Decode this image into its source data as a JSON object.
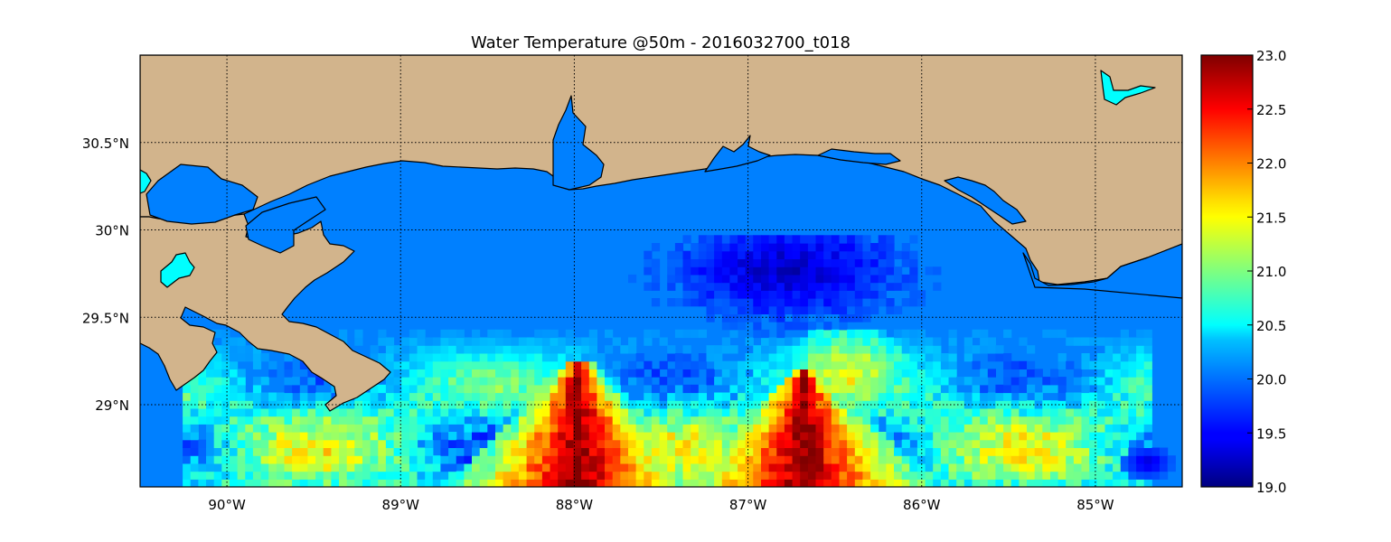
{
  "chart_data": {
    "type": "heatmap",
    "title": "Water Temperature @50m - 2016032700_t018",
    "xlabel": "",
    "ylabel": "",
    "xlim": [
      -90.5,
      -84.5
    ],
    "ylim": [
      28.53,
      31.0
    ],
    "grid": true,
    "x_ticks": [
      {
        "value": -90,
        "label": "90°W"
      },
      {
        "value": -89,
        "label": "89°W"
      },
      {
        "value": -88,
        "label": "88°W"
      },
      {
        "value": -87,
        "label": "87°W"
      },
      {
        "value": -86,
        "label": "86°W"
      },
      {
        "value": -85,
        "label": "85°W"
      }
    ],
    "y_ticks": [
      {
        "value": 29.0,
        "label": "29°N"
      },
      {
        "value": 29.5,
        "label": "29.5°N"
      },
      {
        "value": 30.0,
        "label": "30°N"
      },
      {
        "value": 30.5,
        "label": "30.5°N"
      }
    ],
    "colorbar": {
      "min": 19.0,
      "max": 23.0,
      "colormap": "jet",
      "ticks": [
        "19.0",
        "19.5",
        "20.0",
        "20.5",
        "21.0",
        "21.5",
        "22.0",
        "22.5",
        "23.0"
      ]
    },
    "features": {
      "cold_core": {
        "center_lon": -86.8,
        "center_lat": 29.75,
        "temp": 19.2
      },
      "warm_tongue_west": {
        "apex_lon": -88.0,
        "apex_lat": 29.25,
        "temp": 23.0
      },
      "warm_tongue_east": {
        "apex_lon": -86.7,
        "apex_lat": 29.2,
        "temp": 23.0
      },
      "background_temp": 20.0
    },
    "colors": {
      "land": "#d2b48c",
      "background_water": "#0080ff",
      "lake": "#00ffff"
    }
  }
}
